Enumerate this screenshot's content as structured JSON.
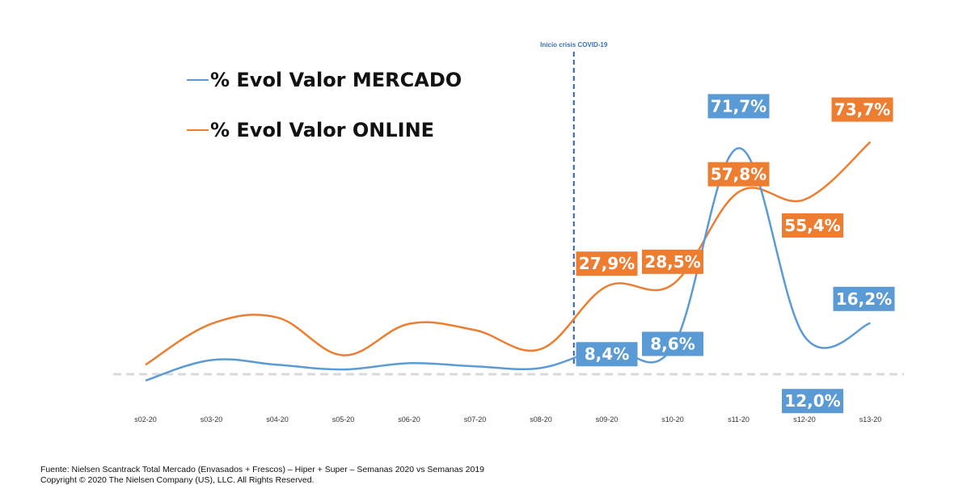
{
  "chart_data": {
    "type": "line",
    "title": "",
    "xlabel": "",
    "ylabel": "",
    "categories": [
      "s02-20",
      "s03-20",
      "s04-20",
      "s05-20",
      "s06-20",
      "s07-20",
      "s08-20",
      "s09-20",
      "s10-20",
      "s11-20",
      "s12-20",
      "s13-20"
    ],
    "legend_position": "top-left",
    "grid": false,
    "series": [
      {
        "name": "% Evol Valor MERCADO",
        "color": "#5b9bd5",
        "values": [
          -2.0,
          4.5,
          3.0,
          1.5,
          3.5,
          2.5,
          2.0,
          8.4,
          8.6,
          71.7,
          12.0,
          16.2
        ],
        "labels": [
          "",
          "",
          "",
          "",
          "",
          "",
          "",
          "8,4%",
          "8,6%",
          "71,7%",
          "12,0%",
          "16,2%"
        ]
      },
      {
        "name": "% Evol Valor ONLINE",
        "color": "#ed7d31",
        "values": [
          3.0,
          16.0,
          18.0,
          6.0,
          16.0,
          14.0,
          8.0,
          27.9,
          28.5,
          57.8,
          55.4,
          73.7
        ],
        "labels": [
          "",
          "",
          "",
          "",
          "",
          "",
          "",
          "27,9%",
          "28,5%",
          "57,8%",
          "55,4%",
          "73,7%"
        ]
      }
    ],
    "annotation": {
      "text": "Inicio crisis COVID-19",
      "between": [
        "s08-20",
        "s09-20"
      ]
    }
  },
  "footer": {
    "line1": "Fuente: Nielsen Scantrack Total Mercado (Envasados + Frescos) – Hiper + Super – Semanas 2020 vs Semanas 2019",
    "line2": "Copyright © 2020 The Nielsen Company (US), LLC. All Rights Reserved."
  }
}
